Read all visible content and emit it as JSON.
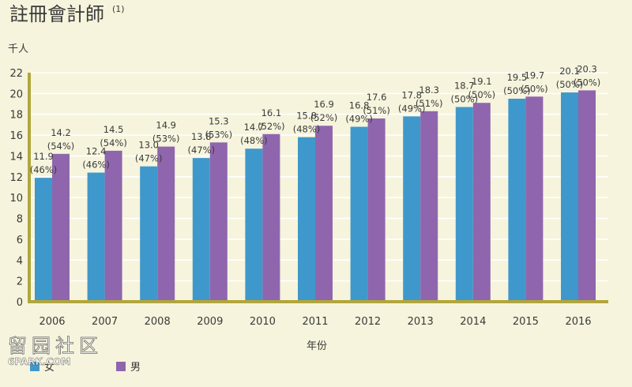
{
  "title": "註冊會計師",
  "title_note": "(1)",
  "watermark": {
    "line1": "留园社区",
    "line2": "6PARK.COM"
  },
  "colors": {
    "female": "#3f98cb",
    "male": "#8f66ad",
    "axis": "#b1a63d",
    "grid": "#ffffff",
    "background": "#f6f4dc",
    "text": "#3a3a3a"
  },
  "chart_data": {
    "type": "bar",
    "title": "註冊會計師",
    "ylabel": "千人",
    "xlabel": "年份",
    "ylim": [
      0,
      22
    ],
    "yticks": [
      0,
      2,
      4,
      6,
      8,
      10,
      12,
      14,
      16,
      18,
      20,
      22
    ],
    "categories": [
      "2006",
      "2007",
      "2008",
      "2009",
      "2010",
      "2011",
      "2012",
      "2013",
      "2014",
      "2015",
      "2016"
    ],
    "series": [
      {
        "name": "女",
        "values": [
          11.9,
          12.4,
          13.0,
          13.8,
          14.7,
          15.8,
          16.8,
          17.8,
          18.7,
          19.5,
          20.1
        ],
        "labels": [
          "11.9",
          "12.4",
          "13.0",
          "13.8",
          "14.7",
          "15.8",
          "16.8",
          "17.8",
          "18.7",
          "19.5",
          "20.1"
        ],
        "percent_labels": [
          "(46%)",
          "(46%)",
          "(47%)",
          "(47%)",
          "(48%)",
          "(48%)",
          "(49%)",
          "(49%)",
          "(50%)",
          "(50%)",
          "(50%)"
        ]
      },
      {
        "name": "男",
        "values": [
          14.2,
          14.5,
          14.9,
          15.3,
          16.1,
          16.9,
          17.6,
          18.3,
          19.1,
          19.7,
          20.3
        ],
        "labels": [
          "14.2",
          "14.5",
          "14.9",
          "15.3",
          "16.1",
          "16.9",
          "17.6",
          "18.3",
          "19.1",
          "19.7",
          "20.3"
        ],
        "percent_labels": [
          "(54%)",
          "(54%)",
          "(53%)",
          "(53%)",
          "(52%)",
          "(52%)",
          "(51%)",
          "(51%)",
          "(50%)",
          "(50%)",
          "(50%)"
        ]
      }
    ],
    "grid": true,
    "legend_position": "bottom-left"
  }
}
